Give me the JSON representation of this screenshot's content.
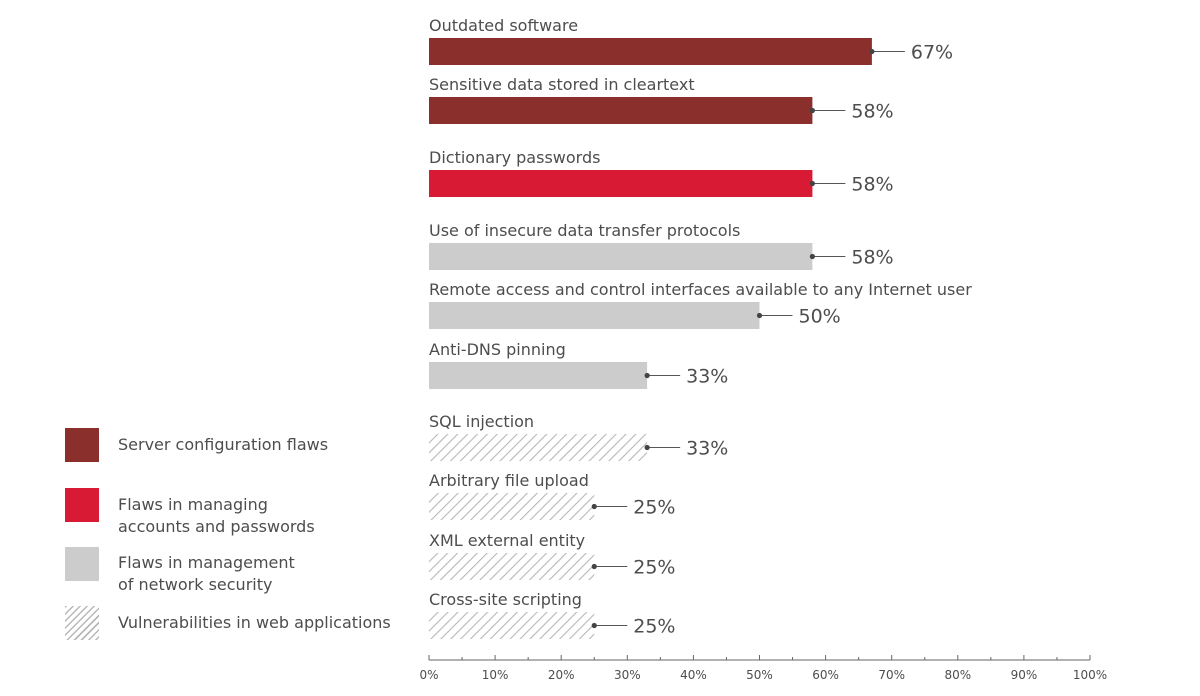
{
  "colors": {
    "server": "#8b2f2c",
    "accounts": "#d81a34",
    "network": "#cccccc",
    "web_hatch": "#b8b8b8",
    "text": "#4d4d4d",
    "axis": "#666666"
  },
  "legend": [
    {
      "key": "server",
      "label": "Server configuration flaws"
    },
    {
      "key": "accounts",
      "label": "Flaws in managing\naccounts and passwords"
    },
    {
      "key": "network",
      "label": "Flaws in management\nof network security"
    },
    {
      "key": "web",
      "label": "Vulnerabilities in web applications"
    }
  ],
  "chart_data": {
    "type": "bar",
    "orientation": "horizontal",
    "title": "",
    "xlabel": "",
    "ylabel": "",
    "xlim": [
      0,
      100
    ],
    "x_ticks": [
      "0%",
      "10%",
      "20%",
      "30%",
      "40%",
      "50%",
      "60%",
      "70%",
      "80%",
      "90%",
      "100%"
    ],
    "grid": false,
    "legend_position": "left",
    "categories": [
      "Outdated software",
      "Sensitive data stored in cleartext",
      "Dictionary passwords",
      "Use of insecure data transfer protocols",
      "Remote access and control interfaces available to any Internet user",
      "Anti-DNS pinning",
      "SQL injection",
      "Arbitrary file upload",
      "XML external entity",
      "Cross-site scripting"
    ],
    "values": [
      67,
      58,
      58,
      58,
      50,
      33,
      33,
      25,
      25,
      25
    ],
    "value_labels": [
      "67%",
      "58%",
      "58%",
      "58%",
      "50%",
      "33%",
      "33%",
      "25%",
      "25%",
      "25%"
    ],
    "groups": [
      "server",
      "server",
      "accounts",
      "network",
      "network",
      "network",
      "web",
      "web",
      "web",
      "web"
    ]
  }
}
